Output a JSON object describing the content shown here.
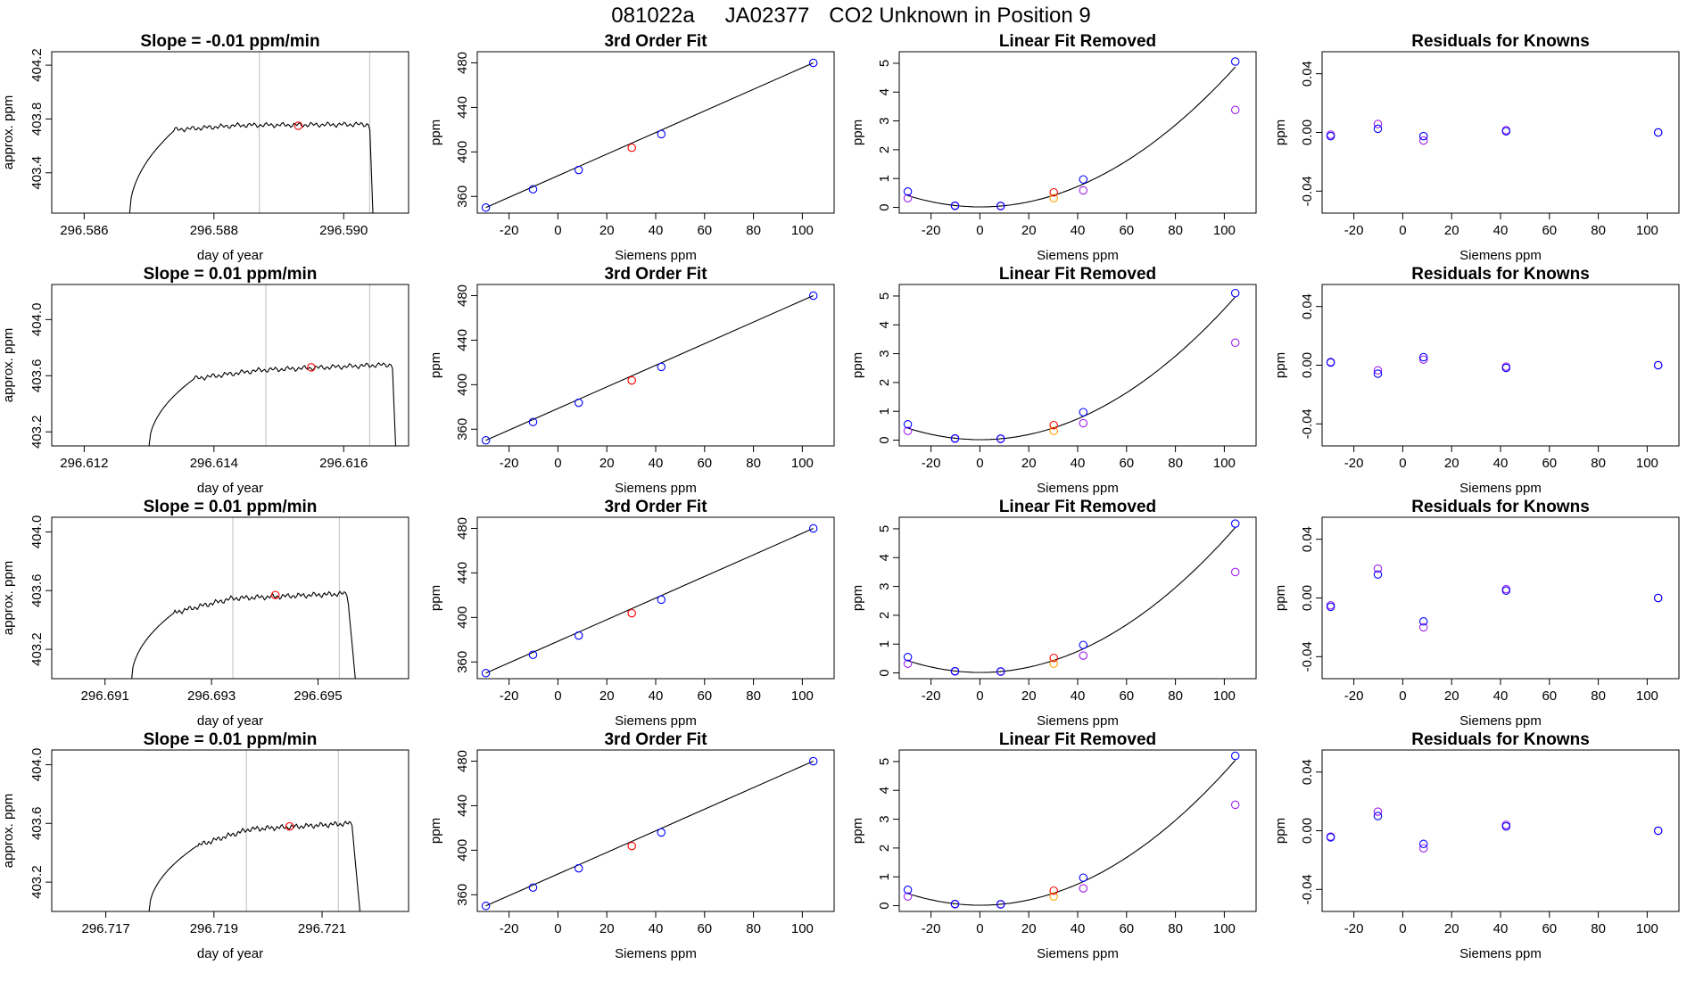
{
  "figure_title": {
    "run_id": "081022a",
    "tank_id": "JA02377",
    "description": "CO2 Unknown in Position  9"
  },
  "colors": {
    "axes": "#000000",
    "trace": "#000000",
    "marker_line": "#bebebe",
    "unknown_marker": "#ff0000",
    "known_marker": "#0000ff",
    "linear_removed_marker": "#a020f0",
    "unknown_removed_marker": "#ffa500"
  },
  "chart_data": [
    {
      "type": "line",
      "title": "Slope =  -0.01  ppm/min",
      "xlabel": "day of year",
      "ylabel": "approx. ppm",
      "xlim": [
        296.5855,
        296.591
      ],
      "ylim": [
        403.1,
        404.3
      ],
      "xticks": [
        "296.586",
        "296.588",
        "296.590"
      ],
      "xtick_values": [
        296.586,
        296.588,
        296.59
      ],
      "yticks": [
        "403.4",
        "403.8",
        "404.2"
      ],
      "ytick_values": [
        403.4,
        403.8,
        404.2
      ],
      "vlines": [
        296.5887,
        296.5904
      ],
      "trace": {
        "x_start": 296.5867,
        "x_rise_end": 296.5874,
        "x_flat_end": 296.5904,
        "x_drop": 296.59045,
        "y_start": 403.1,
        "y_rise": 403.72,
        "y_plateau": 403.75,
        "y_plateau_end": 403.76,
        "y_end": 403.1
      },
      "unknown_point": {
        "x": 296.5893,
        "y": 403.75
      }
    },
    {
      "type": "scatter",
      "title": "3rd Order Fit",
      "xlabel": "Siemens ppm",
      "ylabel": "ppm",
      "xlim": [
        -33,
        113
      ],
      "ylim": [
        345,
        490
      ],
      "xticks": [
        "-20",
        "0",
        "20",
        "40",
        "60",
        "80",
        "100"
      ],
      "xtick_values": [
        -20,
        0,
        20,
        40,
        60,
        80,
        100
      ],
      "yticks": [
        "360",
        "400",
        "440",
        "480"
      ],
      "ytick_values": [
        360,
        400,
        440,
        480
      ],
      "fit_line": {
        "x": [
          -29.5,
          104.5
        ],
        "y": [
          350.0,
          480.0
        ]
      },
      "known_points": {
        "x": [
          -29.5,
          -10.2,
          8.5,
          42.3,
          104.5
        ],
        "y": [
          350.0,
          366.5,
          383.8,
          416.0,
          480.0
        ]
      },
      "unknown_points": {
        "x": [
          30.2
        ],
        "y": [
          403.8
        ]
      }
    },
    {
      "type": "scatter",
      "title": "Linear Fit Removed",
      "xlabel": "Siemens ppm",
      "ylabel": "ppm",
      "xlim": [
        -33,
        113
      ],
      "ylim": [
        -0.2,
        5.4
      ],
      "xticks": [
        "-20",
        "0",
        "20",
        "40",
        "60",
        "80",
        "100"
      ],
      "xtick_values": [
        -20,
        0,
        20,
        40,
        60,
        80,
        100
      ],
      "yticks": [
        "0",
        "1",
        "2",
        "3",
        "4",
        "5"
      ],
      "ytick_values": [
        0,
        1,
        2,
        3,
        4,
        5
      ],
      "curve": {
        "a": 0.000446,
        "b": -0.00016,
        "c": 0.017
      },
      "known_points": {
        "x": [
          -29.5,
          -10.2,
          8.5,
          42.3,
          104.5
        ],
        "y": [
          0.55,
          0.06,
          0.05,
          0.97,
          5.06
        ]
      },
      "removed_points": {
        "x": [
          -29.5,
          -10.2,
          8.5,
          42.3,
          104.5
        ],
        "y": [
          0.32,
          0.05,
          0.04,
          0.59,
          3.38
        ]
      },
      "unknown_points": {
        "x": [
          30.2
        ],
        "y": [
          0.52
        ]
      },
      "unknown_removed_points": {
        "x": [
          30.2
        ],
        "y": [
          0.32
        ]
      }
    },
    {
      "type": "scatter",
      "title": "Residuals for Knowns",
      "xlabel": "Siemens ppm",
      "ylabel": "ppm",
      "xlim": [
        -33,
        113
      ],
      "ylim": [
        -0.055,
        0.055
      ],
      "xticks": [
        "-20",
        "0",
        "20",
        "40",
        "60",
        "80",
        "100"
      ],
      "xtick_values": [
        -20,
        0,
        20,
        40,
        60,
        80,
        100
      ],
      "yticks": [
        "-0.04",
        "0.00",
        "0.04"
      ],
      "ytick_values": [
        -0.04,
        0.0,
        0.04
      ],
      "known_points": {
        "x": [
          -29.5,
          -10.2,
          8.5,
          42.3,
          104.5
        ],
        "y": [
          -0.0025,
          0.0025,
          -0.0025,
          0.0008,
          0.0
        ]
      },
      "removed_points": {
        "x": [
          -29.5,
          -10.2,
          8.5,
          42.3,
          104.5
        ],
        "y": [
          -0.0015,
          0.0058,
          -0.0055,
          0.0015,
          0.0
        ]
      }
    },
    {
      "type": "line",
      "title": "Slope =  0.01  ppm/min",
      "xlabel": "day of year",
      "ylabel": "approx. ppm",
      "xlim": [
        296.6115,
        296.617
      ],
      "ylim": [
        403.1,
        404.25
      ],
      "xticks": [
        "296.612",
        "296.614",
        "296.616"
      ],
      "xtick_values": [
        296.612,
        296.614,
        296.616
      ],
      "yticks": [
        "403.2",
        "403.6",
        "404.0"
      ],
      "ytick_values": [
        403.2,
        403.6,
        404.0
      ],
      "vlines": [
        296.6148,
        296.6164
      ],
      "trace": {
        "x_start": 296.613,
        "x_rise_end": 296.6137,
        "x_flat_end": 296.61675,
        "x_drop": 296.6168,
        "y_start": 403.1,
        "y_rise": 403.58,
        "y_plateau": 403.62,
        "y_plateau_end": 403.68,
        "y_end": 403.1
      },
      "unknown_point": {
        "x": 296.6155,
        "y": 403.66
      }
    },
    {
      "type": "scatter",
      "title": "3rd Order Fit",
      "xlabel": "Siemens ppm",
      "ylabel": "ppm",
      "xlim": [
        -33,
        113
      ],
      "ylim": [
        345,
        490
      ],
      "xticks": [
        "-20",
        "0",
        "20",
        "40",
        "60",
        "80",
        "100"
      ],
      "xtick_values": [
        -20,
        0,
        20,
        40,
        60,
        80,
        100
      ],
      "yticks": [
        "360",
        "400",
        "440",
        "480"
      ],
      "ytick_values": [
        360,
        400,
        440,
        480
      ],
      "fit_line": {
        "x": [
          -29.5,
          104.5
        ],
        "y": [
          350.0,
          480.0
        ]
      },
      "known_points": {
        "x": [
          -29.5,
          -10.2,
          8.5,
          42.3,
          104.5
        ],
        "y": [
          350.0,
          366.5,
          383.8,
          416.0,
          480.0
        ]
      },
      "unknown_points": {
        "x": [
          30.2
        ],
        "y": [
          403.8
        ]
      }
    },
    {
      "type": "scatter",
      "title": "Linear Fit Removed",
      "xlabel": "Siemens ppm",
      "ylabel": "ppm",
      "xlim": [
        -33,
        113
      ],
      "ylim": [
        -0.2,
        5.4
      ],
      "xticks": [
        "-20",
        "0",
        "20",
        "40",
        "60",
        "80",
        "100"
      ],
      "xtick_values": [
        -20,
        0,
        20,
        40,
        60,
        80,
        100
      ],
      "yticks": [
        "0",
        "1",
        "2",
        "3",
        "4",
        "5"
      ],
      "ytick_values": [
        0,
        1,
        2,
        3,
        4,
        5
      ],
      "curve": {
        "a": 0.000455,
        "b": -0.00016,
        "c": 0.017
      },
      "known_points": {
        "x": [
          -29.5,
          -10.2,
          8.5,
          42.3,
          104.5
        ],
        "y": [
          0.55,
          0.06,
          0.05,
          0.97,
          5.1
        ]
      },
      "removed_points": {
        "x": [
          -29.5,
          -10.2,
          8.5,
          42.3,
          104.5
        ],
        "y": [
          0.32,
          0.05,
          0.04,
          0.59,
          3.38
        ]
      },
      "unknown_points": {
        "x": [
          30.2
        ],
        "y": [
          0.52
        ]
      },
      "unknown_removed_points": {
        "x": [
          30.2
        ],
        "y": [
          0.32
        ]
      }
    },
    {
      "type": "scatter",
      "title": "Residuals for Knowns",
      "xlabel": "Siemens ppm",
      "ylabel": "ppm",
      "xlim": [
        -33,
        113
      ],
      "ylim": [
        -0.055,
        0.055
      ],
      "xticks": [
        "-20",
        "0",
        "20",
        "40",
        "60",
        "80",
        "100"
      ],
      "xtick_values": [
        -20,
        0,
        20,
        40,
        60,
        80,
        100
      ],
      "yticks": [
        "-0.04",
        "0.00",
        "0.04"
      ],
      "ytick_values": [
        -0.04,
        0.0,
        0.04
      ],
      "known_points": {
        "x": [
          -29.5,
          -10.2,
          8.5,
          42.3,
          104.5
        ],
        "y": [
          0.0018,
          -0.0058,
          0.0055,
          -0.0018,
          0.0
        ]
      },
      "removed_points": {
        "x": [
          -29.5,
          -10.2,
          8.5,
          42.3,
          104.5
        ],
        "y": [
          0.0022,
          -0.0035,
          0.0038,
          -0.001,
          0.0
        ]
      }
    },
    {
      "type": "line",
      "title": "Slope =  0.01  ppm/min",
      "xlabel": "day of year",
      "ylabel": "approx. ppm",
      "xlim": [
        296.69,
        296.6967
      ],
      "ylim": [
        403.0,
        404.1
      ],
      "xticks": [
        "296.691",
        "296.693",
        "296.695"
      ],
      "xtick_values": [
        296.691,
        296.693,
        296.695
      ],
      "yticks": [
        "403.2",
        "403.6",
        "404.0"
      ],
      "ytick_values": [
        403.2,
        403.6,
        404.0
      ],
      "vlines": [
        296.6934,
        296.6954
      ],
      "trace": {
        "x_start": 296.6915,
        "x_rise_end": 296.6923,
        "x_flat_end": 296.69555,
        "x_drop": 296.6957,
        "y_start": 403.0,
        "y_rise": 403.45,
        "y_plateau": 403.53,
        "y_plateau_end": 403.58,
        "y_end": 403.0
      },
      "unknown_point": {
        "x": 296.6942,
        "y": 403.57
      }
    },
    {
      "type": "scatter",
      "title": "3rd Order Fit",
      "xlabel": "Siemens ppm",
      "ylabel": "ppm",
      "xlim": [
        -33,
        113
      ],
      "ylim": [
        345,
        490
      ],
      "xticks": [
        "-20",
        "0",
        "20",
        "40",
        "60",
        "80",
        "100"
      ],
      "xtick_values": [
        -20,
        0,
        20,
        40,
        60,
        80,
        100
      ],
      "yticks": [
        "360",
        "400",
        "440",
        "480"
      ],
      "ytick_values": [
        360,
        400,
        440,
        480
      ],
      "fit_line": {
        "x": [
          -29.5,
          104.5
        ],
        "y": [
          350.0,
          480.0
        ]
      },
      "known_points": {
        "x": [
          -29.5,
          -10.2,
          8.5,
          42.3,
          104.5
        ],
        "y": [
          350.0,
          366.5,
          383.8,
          416.0,
          480.0
        ]
      },
      "unknown_points": {
        "x": [
          30.2
        ],
        "y": [
          403.8
        ]
      }
    },
    {
      "type": "scatter",
      "title": "Linear Fit Removed",
      "xlabel": "Siemens ppm",
      "ylabel": "ppm",
      "xlim": [
        -33,
        113
      ],
      "ylim": [
        -0.2,
        5.4
      ],
      "xticks": [
        "-20",
        "0",
        "20",
        "40",
        "60",
        "80",
        "100"
      ],
      "xtick_values": [
        -20,
        0,
        20,
        40,
        60,
        80,
        100
      ],
      "yticks": [
        "0",
        "1",
        "2",
        "3",
        "4",
        "5"
      ],
      "ytick_values": [
        0,
        1,
        2,
        3,
        4,
        5
      ],
      "curve": {
        "a": 0.000462,
        "b": -0.00016,
        "c": 0.017
      },
      "known_points": {
        "x": [
          -29.5,
          -10.2,
          8.5,
          42.3,
          104.5
        ],
        "y": [
          0.55,
          0.06,
          0.05,
          0.97,
          5.18
        ]
      },
      "removed_points": {
        "x": [
          -29.5,
          -10.2,
          8.5,
          42.3,
          104.5
        ],
        "y": [
          0.32,
          0.05,
          0.04,
          0.6,
          3.5
        ]
      },
      "unknown_points": {
        "x": [
          30.2
        ],
        "y": [
          0.52
        ]
      },
      "unknown_removed_points": {
        "x": [
          30.2
        ],
        "y": [
          0.32
        ]
      }
    },
    {
      "type": "scatter",
      "title": "Residuals for Knowns",
      "xlabel": "Siemens ppm",
      "ylabel": "ppm",
      "xlim": [
        -33,
        113
      ],
      "ylim": [
        -0.055,
        0.055
      ],
      "xticks": [
        "-20",
        "0",
        "20",
        "40",
        "60",
        "80",
        "100"
      ],
      "xtick_values": [
        -20,
        0,
        20,
        40,
        60,
        80,
        100
      ],
      "yticks": [
        "-0.04",
        "0.00",
        "0.04"
      ],
      "ytick_values": [
        -0.04,
        0.0,
        0.04
      ],
      "known_points": {
        "x": [
          -29.5,
          -10.2,
          8.5,
          42.3,
          104.5
        ],
        "y": [
          -0.006,
          0.016,
          -0.016,
          0.005,
          0.0
        ]
      },
      "removed_points": {
        "x": [
          -29.5,
          -10.2,
          8.5,
          42.3,
          104.5
        ],
        "y": [
          -0.005,
          0.02,
          -0.02,
          0.006,
          0.0
        ]
      }
    },
    {
      "type": "line",
      "title": "Slope =  0.01  ppm/min",
      "xlabel": "day of year",
      "ylabel": "approx. ppm",
      "xlim": [
        296.716,
        296.7226
      ],
      "ylim": [
        403.0,
        404.1
      ],
      "xticks": [
        "296.717",
        "296.719",
        "296.721"
      ],
      "xtick_values": [
        296.717,
        296.719,
        296.721
      ],
      "yticks": [
        "403.2",
        "403.6",
        "404.0"
      ],
      "ytick_values": [
        403.2,
        403.6,
        404.0
      ],
      "vlines": [
        296.7196,
        296.7213
      ],
      "trace": {
        "x_start": 296.7178,
        "x_rise_end": 296.7187,
        "x_flat_end": 296.72155,
        "x_drop": 296.7217,
        "y_start": 403.0,
        "y_rise": 403.45,
        "y_plateau": 403.54,
        "y_plateau_end": 403.6,
        "y_end": 403.0
      },
      "unknown_point": {
        "x": 296.7204,
        "y": 403.58
      }
    },
    {
      "type": "scatter",
      "title": "3rd Order Fit",
      "xlabel": "Siemens ppm",
      "ylabel": "ppm",
      "xlim": [
        -33,
        113
      ],
      "ylim": [
        345,
        490
      ],
      "xticks": [
        "-20",
        "0",
        "20",
        "40",
        "60",
        "80",
        "100"
      ],
      "xtick_values": [
        -20,
        0,
        20,
        40,
        60,
        80,
        100
      ],
      "yticks": [
        "360",
        "400",
        "440",
        "480"
      ],
      "ytick_values": [
        360,
        400,
        440,
        480
      ],
      "fit_line": {
        "x": [
          -29.5,
          104.5
        ],
        "y": [
          350.0,
          480.0
        ]
      },
      "known_points": {
        "x": [
          -29.5,
          -10.2,
          8.5,
          42.3,
          104.5
        ],
        "y": [
          350.0,
          366.5,
          383.8,
          416.0,
          480.0
        ]
      },
      "unknown_points": {
        "x": [
          30.2
        ],
        "y": [
          403.8
        ]
      }
    },
    {
      "type": "scatter",
      "title": "Linear Fit Removed",
      "xlabel": "Siemens ppm",
      "ylabel": "ppm",
      "xlim": [
        -33,
        113
      ],
      "ylim": [
        -0.2,
        5.4
      ],
      "xticks": [
        "-20",
        "0",
        "20",
        "40",
        "60",
        "80",
        "100"
      ],
      "xtick_values": [
        -20,
        0,
        20,
        40,
        60,
        80,
        100
      ],
      "yticks": [
        "0",
        "1",
        "2",
        "3",
        "4",
        "5"
      ],
      "ytick_values": [
        0,
        1,
        2,
        3,
        4,
        5
      ],
      "curve": {
        "a": 0.000462,
        "b": -0.00016,
        "c": 0.017
      },
      "known_points": {
        "x": [
          -29.5,
          -10.2,
          8.5,
          42.3,
          104.5
        ],
        "y": [
          0.55,
          0.06,
          0.05,
          0.97,
          5.2
        ]
      },
      "removed_points": {
        "x": [
          -29.5,
          -10.2,
          8.5,
          42.3,
          104.5
        ],
        "y": [
          0.32,
          0.05,
          0.04,
          0.6,
          3.5
        ]
      },
      "unknown_points": {
        "x": [
          30.2
        ],
        "y": [
          0.52
        ]
      },
      "unknown_removed_points": {
        "x": [
          30.2
        ],
        "y": [
          0.32
        ]
      }
    },
    {
      "type": "scatter",
      "title": "Residuals for Knowns",
      "xlabel": "Siemens ppm",
      "ylabel": "ppm",
      "xlim": [
        -33,
        113
      ],
      "ylim": [
        -0.055,
        0.055
      ],
      "xticks": [
        "-20",
        "0",
        "20",
        "40",
        "60",
        "80",
        "100"
      ],
      "xtick_values": [
        -20,
        0,
        20,
        40,
        60,
        80,
        100
      ],
      "yticks": [
        "-0.04",
        "0.00",
        "0.04"
      ],
      "ytick_values": [
        -0.04,
        0.0,
        0.04
      ],
      "known_points": {
        "x": [
          -29.5,
          -10.2,
          8.5,
          42.3,
          104.5
        ],
        "y": [
          -0.0045,
          0.01,
          -0.009,
          0.003,
          0.0
        ]
      },
      "removed_points": {
        "x": [
          -29.5,
          -10.2,
          8.5,
          42.3,
          104.5
        ],
        "y": [
          -0.004,
          0.013,
          -0.012,
          0.004,
          0.0
        ]
      }
    }
  ]
}
